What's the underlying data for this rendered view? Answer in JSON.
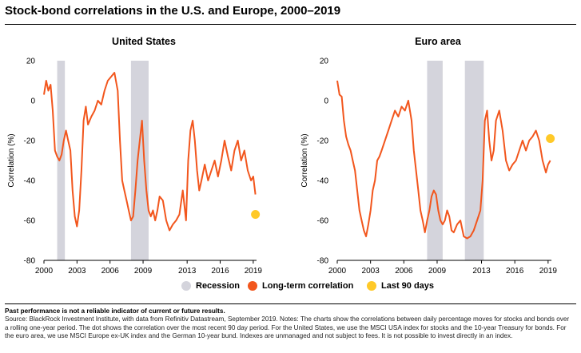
{
  "title": "Stock-bond correlations in the U.S. and Europe, 2000–2019",
  "legend": {
    "recession": "Recession",
    "long_term": "Long-term correlation",
    "last_90": "Last 90 days"
  },
  "colors": {
    "recession": "#d4d4dc",
    "series": "#f2561d",
    "dot": "#ffc928",
    "text": "#000000"
  },
  "footnote": {
    "heading": "Past performance is not a reliable indicator of current or future results.",
    "text": "Source: BlackRock Investment Institute, with data from Refinitiv Datastream, September 2019. Notes: The charts show the correlations between daily percentage moves for stocks and bonds over a rolling one-year period. The dot shows the correlation over the most recent 90 day period. For the United States, we use the MSCI USA index for stocks and the 10-year Treasury for bonds. For the euro area, we use MSCI Europe ex-UK index and the German 10-year bund. Indexes are unmanaged and not subject to fees. It is not possible to invest directly in an index."
  },
  "chart_data": [
    {
      "type": "line",
      "title": "United States",
      "ylabel": "Correlation (%)",
      "xlim": [
        2000,
        2019.3
      ],
      "ylim": [
        -80,
        20
      ],
      "x_ticks": [
        "2000",
        "2003",
        "2006",
        "2009",
        "2013",
        "2016",
        "2019"
      ],
      "x_tick_values": [
        2000,
        2003,
        2006,
        2009,
        2013,
        2016,
        2019
      ],
      "y_ticks": [
        "20",
        "0",
        "-20",
        "-40",
        "-60",
        "-80"
      ],
      "y_tick_values": [
        20,
        0,
        -20,
        -40,
        -60,
        -80
      ],
      "recessions": [
        [
          2001.2,
          2001.9
        ],
        [
          2007.9,
          2009.5
        ]
      ],
      "series": [
        {
          "x": [
            2000.0,
            2000.2,
            2000.4,
            2000.6,
            2000.8,
            2001.0,
            2001.2,
            2001.4,
            2001.6,
            2001.8,
            2002.0,
            2002.2,
            2002.4,
            2002.6,
            2002.8,
            2003.0,
            2003.2,
            2003.4,
            2003.6,
            2003.8,
            2004.0,
            2004.3,
            2004.6,
            2004.9,
            2005.2,
            2005.5,
            2005.8,
            2006.1,
            2006.4,
            2006.7,
            2006.9,
            2007.1,
            2007.3,
            2007.5,
            2007.7,
            2007.9,
            2008.1,
            2008.3,
            2008.5,
            2008.7,
            2008.9,
            2009.1,
            2009.3,
            2009.5,
            2009.7,
            2009.9,
            2010.1,
            2010.3,
            2010.5,
            2010.8,
            2011.1,
            2011.4,
            2011.7,
            2012.0,
            2012.3,
            2012.6,
            2012.9,
            2013.1,
            2013.3,
            2013.5,
            2013.7,
            2013.9,
            2014.1,
            2014.3,
            2014.6,
            2014.9,
            2015.2,
            2015.5,
            2015.8,
            2016.1,
            2016.4,
            2016.7,
            2017.0,
            2017.3,
            2017.6,
            2017.9,
            2018.2,
            2018.5,
            2018.8,
            2019.0,
            2019.2
          ],
          "y": [
            3,
            10,
            5,
            8,
            -5,
            -25,
            -28,
            -30,
            -27,
            -20,
            -15,
            -20,
            -25,
            -45,
            -58,
            -63,
            -55,
            -35,
            -10,
            -3,
            -12,
            -8,
            -5,
            0,
            -2,
            5,
            10,
            12,
            14,
            5,
            -20,
            -40,
            -45,
            -50,
            -55,
            -60,
            -58,
            -45,
            -30,
            -20,
            -10,
            -30,
            -45,
            -55,
            -58,
            -55,
            -60,
            -55,
            -48,
            -50,
            -60,
            -65,
            -62,
            -60,
            -57,
            -45,
            -60,
            -30,
            -15,
            -10,
            -20,
            -35,
            -45,
            -40,
            -32,
            -40,
            -35,
            -30,
            -38,
            -30,
            -20,
            -28,
            -35,
            -25,
            -20,
            -30,
            -25,
            -35,
            -40,
            -38,
            -47
          ]
        }
      ],
      "last_90": {
        "x": 2019.2,
        "y": -57
      }
    },
    {
      "type": "line",
      "title": "Euro area",
      "ylabel": "Correlation (%)",
      "xlim": [
        2000,
        2019.3
      ],
      "ylim": [
        -80,
        20
      ],
      "x_ticks": [
        "2000",
        "2003",
        "2006",
        "2009",
        "2013",
        "2016",
        "2019"
      ],
      "x_tick_values": [
        2000,
        2003,
        2006,
        2009,
        2013,
        2016,
        2019
      ],
      "y_ticks": [
        "20",
        "0",
        "-20",
        "-40",
        "-60",
        "-80"
      ],
      "y_tick_values": [
        20,
        0,
        -20,
        -40,
        -60,
        -80
      ],
      "recessions": [
        [
          2008.1,
          2009.5
        ],
        [
          2011.5,
          2013.2
        ]
      ],
      "series": [
        {
          "x": [
            2000.0,
            2000.2,
            2000.4,
            2000.6,
            2000.8,
            2001.0,
            2001.2,
            2001.4,
            2001.6,
            2001.8,
            2002.0,
            2002.2,
            2002.4,
            2002.6,
            2002.8,
            2003.0,
            2003.2,
            2003.4,
            2003.6,
            2003.8,
            2004.0,
            2004.3,
            2004.6,
            2004.9,
            2005.2,
            2005.5,
            2005.8,
            2006.1,
            2006.4,
            2006.7,
            2006.9,
            2007.1,
            2007.3,
            2007.5,
            2007.7,
            2007.9,
            2008.1,
            2008.3,
            2008.5,
            2008.7,
            2008.9,
            2009.1,
            2009.3,
            2009.5,
            2009.7,
            2009.9,
            2010.1,
            2010.3,
            2010.5,
            2010.8,
            2011.1,
            2011.4,
            2011.7,
            2012.0,
            2012.3,
            2012.6,
            2012.9,
            2013.1,
            2013.3,
            2013.5,
            2013.7,
            2013.9,
            2014.1,
            2014.3,
            2014.6,
            2014.9,
            2015.2,
            2015.5,
            2015.8,
            2016.1,
            2016.4,
            2016.7,
            2017.0,
            2017.3,
            2017.6,
            2017.9,
            2018.2,
            2018.5,
            2018.8,
            2019.0,
            2019.2
          ],
          "y": [
            10,
            3,
            2,
            -10,
            -18,
            -22,
            -25,
            -30,
            -35,
            -45,
            -55,
            -60,
            -65,
            -68,
            -62,
            -55,
            -45,
            -40,
            -30,
            -28,
            -25,
            -20,
            -15,
            -10,
            -5,
            -8,
            -3,
            -5,
            0,
            -10,
            -25,
            -35,
            -45,
            -55,
            -60,
            -66,
            -60,
            -55,
            -48,
            -45,
            -47,
            -55,
            -60,
            -62,
            -60,
            -55,
            -58,
            -65,
            -66,
            -62,
            -60,
            -68,
            -69,
            -68,
            -65,
            -60,
            -55,
            -40,
            -10,
            -5,
            -20,
            -30,
            -25,
            -10,
            -5,
            -15,
            -30,
            -35,
            -32,
            -30,
            -25,
            -20,
            -25,
            -20,
            -18,
            -15,
            -20,
            -30,
            -36,
            -32,
            -30
          ]
        }
      ],
      "last_90": {
        "x": 2019.2,
        "y": -19
      }
    }
  ]
}
